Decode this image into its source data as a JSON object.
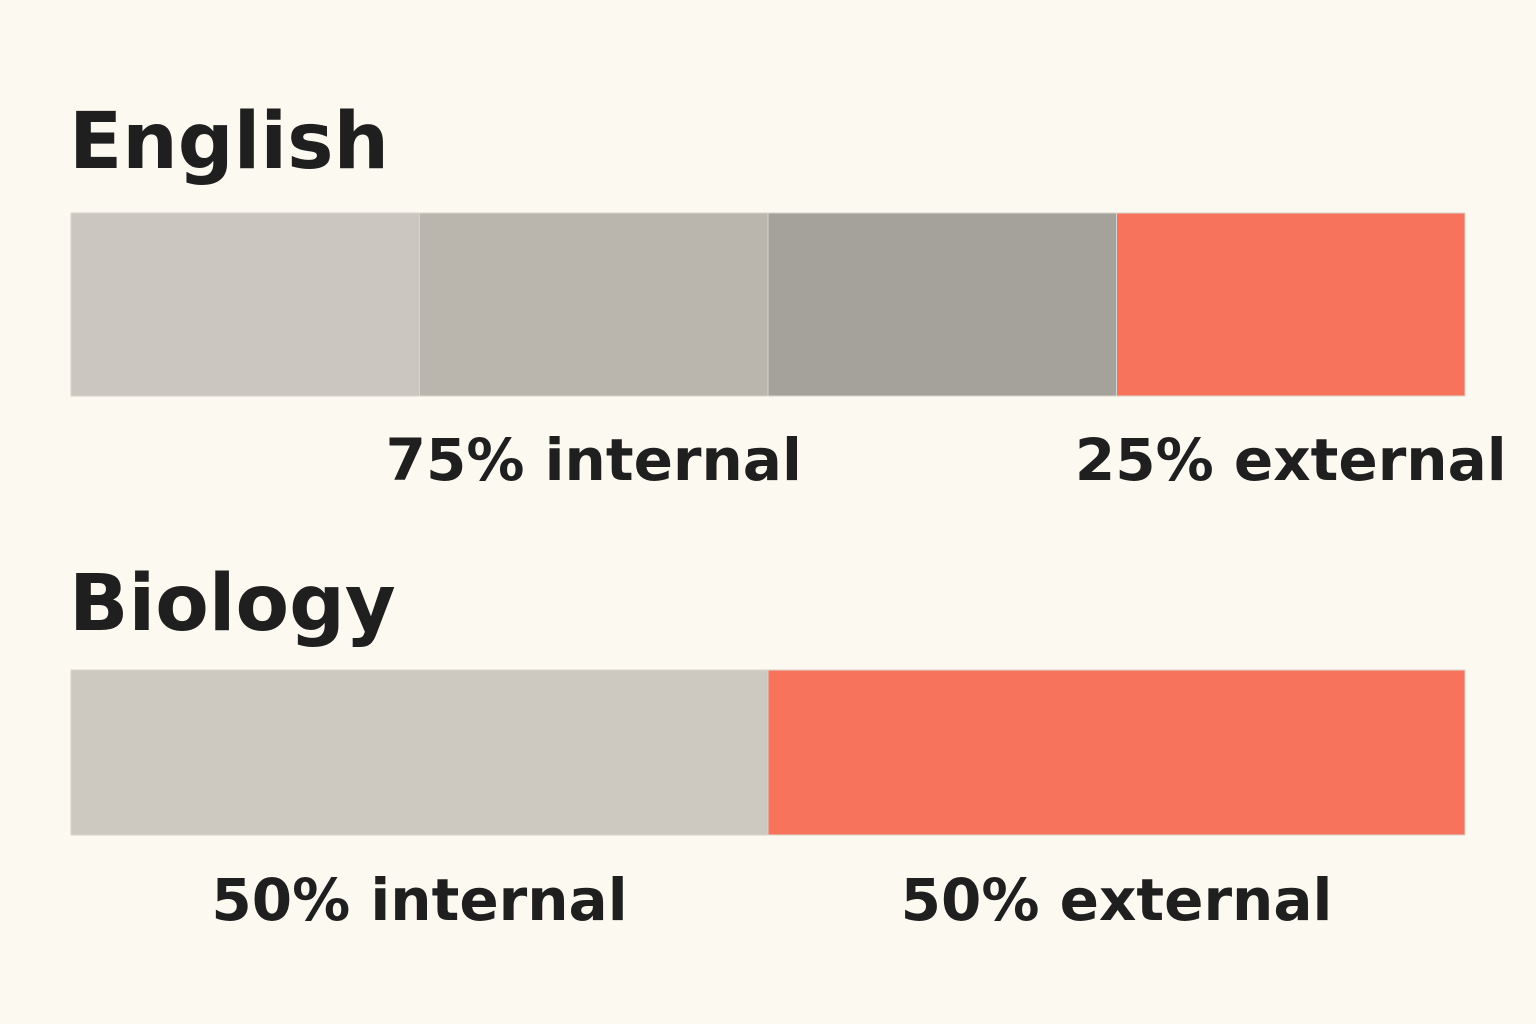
{
  "chart_data": [
    {
      "type": "stacked-bar",
      "title": "English",
      "xlim": [
        0,
        100
      ],
      "series": [
        {
          "color": "#cbc7c0",
          "values": [
            25
          ]
        },
        {
          "color": "#bab6ae",
          "values": [
            25
          ]
        },
        {
          "color": "#a5a29b",
          "values": [
            25
          ]
        },
        {
          "color": "#f8735c",
          "values": [
            25
          ]
        }
      ],
      "annotations": [
        {
          "value": 75,
          "label": "75% internal"
        },
        {
          "value": 25,
          "label": "25% external"
        }
      ]
    },
    {
      "type": "stacked-bar",
      "title": "Biology",
      "xlim": [
        0,
        100
      ],
      "series": [
        {
          "color": "#cdc9c1",
          "values": [
            50
          ]
        },
        {
          "color": "#f8735c",
          "values": [
            50
          ]
        }
      ],
      "annotations": [
        {
          "value": 50,
          "label": "50% internal"
        },
        {
          "value": 50,
          "label": "50% external"
        }
      ]
    }
  ]
}
